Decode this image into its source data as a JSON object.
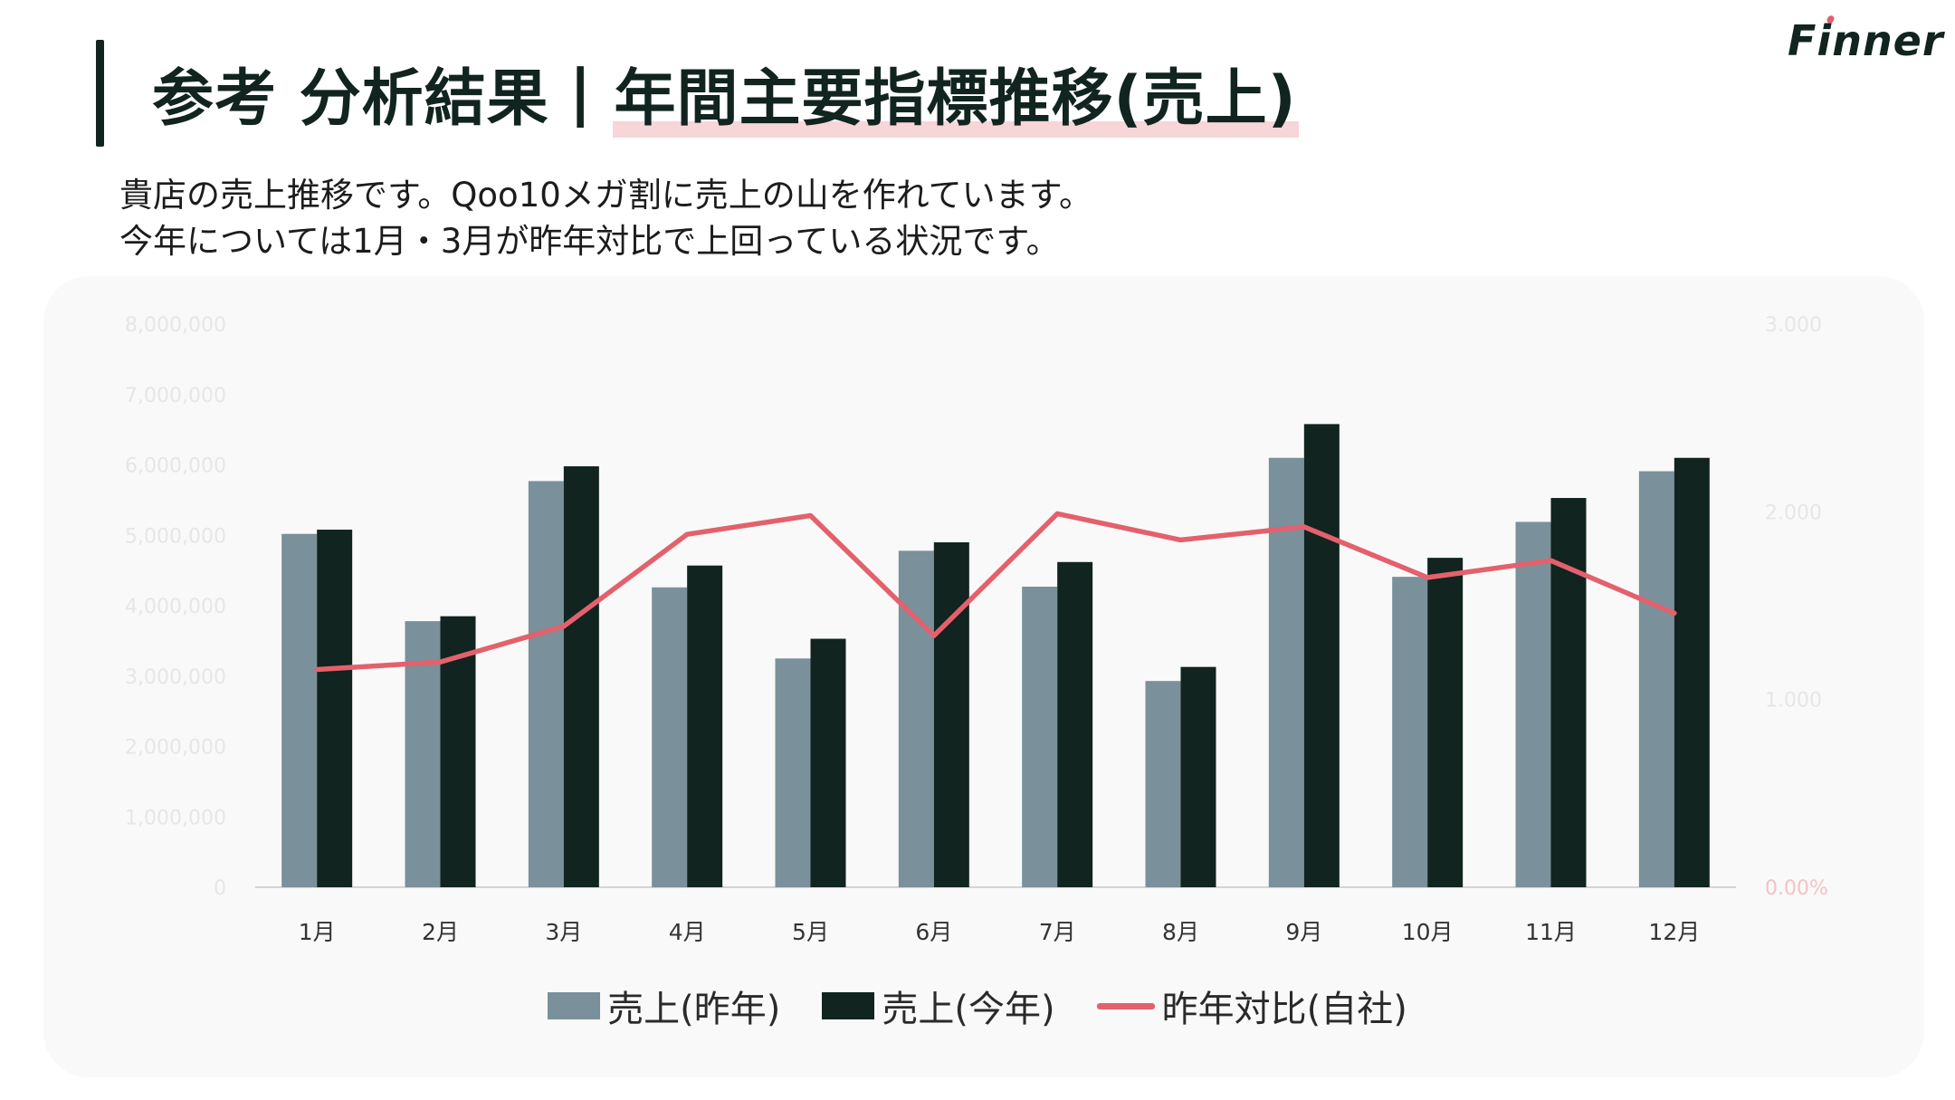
{
  "header": {
    "title_left": "参考 分析結果",
    "title_sep": "|",
    "title_right": "年間主要指標推移(売上)"
  },
  "logo": {
    "text": "Finner"
  },
  "description": {
    "line1": "貴店の売上推移です。Qoo10メガ割に売上の山を作れています。",
    "line2": "今年については1月・3月が昨年対比で上回っている状況です。"
  },
  "colors": {
    "prev_year": "#7a909a",
    "this_year": "#11241f",
    "ratio_line": "#e3616c"
  },
  "chart_data": {
    "type": "bar",
    "categories": [
      "1月",
      "2月",
      "3月",
      "4月",
      "5月",
      "6月",
      "7月",
      "8月",
      "9月",
      "10月",
      "11月",
      "12月"
    ],
    "series": [
      {
        "name": "売上(昨年)",
        "type": "bar",
        "axis": "left",
        "values": [
          5020000,
          3780000,
          5770000,
          4260000,
          3250000,
          4780000,
          4270000,
          2930000,
          6100000,
          4410000,
          5190000,
          5910000
        ]
      },
      {
        "name": "売上(今年)",
        "type": "bar",
        "axis": "left",
        "values": [
          5080000,
          3850000,
          5980000,
          4570000,
          3530000,
          4900000,
          4620000,
          3130000,
          6580000,
          4680000,
          5530000,
          6100000
        ]
      },
      {
        "name": "昨年対比(自社)",
        "type": "line",
        "axis": "right",
        "values": [
          1.16,
          1.2,
          1.39,
          1.88,
          1.98,
          1.34,
          1.99,
          1.85,
          1.92,
          1.65,
          1.74,
          1.46
        ]
      }
    ],
    "y_left": {
      "range": [
        0,
        8000000
      ],
      "ticks": [
        "0",
        "1,000,000",
        "2,000,000",
        "3,000,000",
        "4,000,000",
        "5,000,000",
        "6,000,000",
        "7,000,000",
        "8,000,000"
      ]
    },
    "y_right": {
      "range": [
        0,
        3
      ],
      "ticks": [
        "0.00%",
        "1.000",
        "2.000",
        "3.000"
      ]
    },
    "legend_position": "bottom"
  }
}
